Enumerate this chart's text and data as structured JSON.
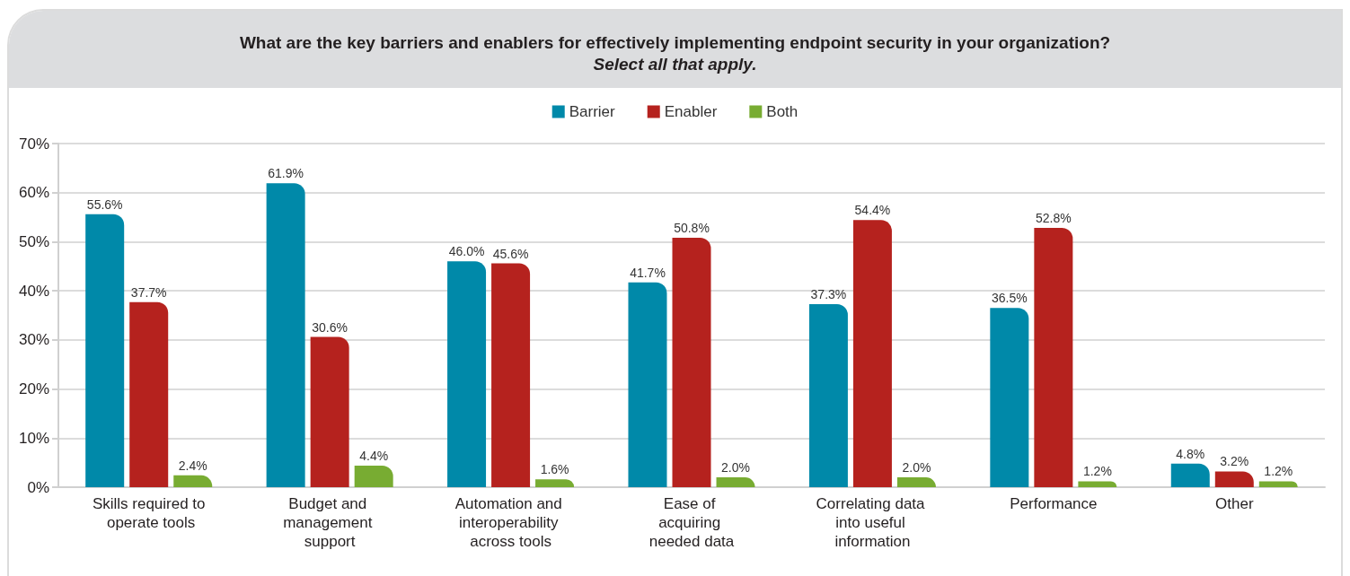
{
  "chart_data": {
    "type": "bar",
    "title": "What are the key barriers and enablers for effectively implementing endpoint security in your organization?",
    "subtitle": "Select all that apply.",
    "categories": [
      "Skills required to operate tools",
      "Budget and management support",
      "Automation and interoperability across tools",
      "Ease of acquiring needed data",
      "Correlating data into useful information",
      "Performance",
      "Other"
    ],
    "series": [
      {
        "name": "Barrier",
        "color": "#0089a9",
        "values": [
          55.6,
          61.9,
          46.0,
          41.7,
          37.3,
          36.5,
          4.8
        ],
        "value_labels": [
          "55.6%",
          "61.9%",
          "46.0%",
          "41.7%",
          "37.3%",
          "36.5%",
          "4.8%"
        ]
      },
      {
        "name": "Enabler",
        "color": "#b5221e",
        "values": [
          37.7,
          30.6,
          45.6,
          50.8,
          54.4,
          52.8,
          3.2
        ],
        "value_labels": [
          "37.7%",
          "30.6%",
          "45.6%",
          "50.8%",
          "54.4%",
          "52.8%",
          "3.2%"
        ]
      },
      {
        "name": "Both",
        "color": "#78ac32",
        "values": [
          2.4,
          4.4,
          1.6,
          2.0,
          2.0,
          1.2,
          1.2
        ],
        "value_labels": [
          "2.4%",
          "4.4%",
          "1.6%",
          "2.0%",
          "2.0%",
          "1.2%",
          "1.2%"
        ]
      }
    ],
    "ylim": [
      0,
      70
    ],
    "yticks": [
      {
        "value": 0,
        "label": "0%"
      },
      {
        "value": 10,
        "label": "10%"
      },
      {
        "value": 20,
        "label": "20%"
      },
      {
        "value": 30,
        "label": "30%"
      },
      {
        "value": 40,
        "label": "40%"
      },
      {
        "value": 50,
        "label": "50%"
      },
      {
        "value": 60,
        "label": "60%"
      },
      {
        "value": 70,
        "label": "70%"
      }
    ],
    "grid": "y",
    "legend": "top"
  }
}
